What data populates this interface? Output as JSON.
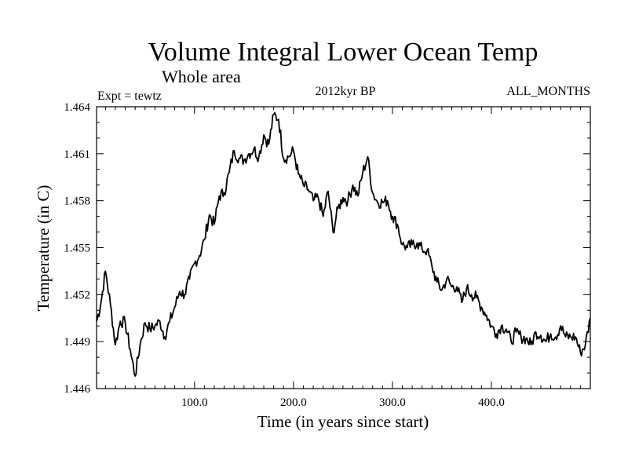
{
  "chart_data": {
    "type": "line",
    "title": "Volume Integral Lower Ocean Temp",
    "subtitle": "Whole area",
    "annotations": {
      "left": "Expt = tewtz",
      "center": "2012kyr BP",
      "right": "ALL_MONTHS"
    },
    "xlabel": "Time (in years since start)",
    "ylabel": "Temperature (in C)",
    "xlim": [
      1,
      500
    ],
    "ylim": [
      1.446,
      1.464
    ],
    "x_ticks": [
      100,
      200,
      300,
      400
    ],
    "x_tick_labels": [
      "100.0",
      "200.0",
      "300.0",
      "400.0"
    ],
    "y_ticks": [
      1.446,
      1.449,
      1.452,
      1.455,
      1.458,
      1.461,
      1.464
    ],
    "y_tick_labels": [
      "1.446",
      "1.449",
      "1.452",
      "1.455",
      "1.458",
      "1.461",
      "1.464"
    ],
    "series": [
      {
        "name": "Volume Integral Lower Ocean Temp",
        "x": [
          1,
          5,
          10,
          15,
          20,
          25,
          30,
          35,
          40,
          45,
          50,
          55,
          60,
          65,
          70,
          75,
          80,
          85,
          90,
          95,
          100,
          105,
          110,
          115,
          120,
          125,
          130,
          135,
          140,
          145,
          150,
          155,
          160,
          165,
          170,
          175,
          180,
          185,
          190,
          195,
          200,
          205,
          210,
          215,
          220,
          225,
          230,
          235,
          240,
          245,
          250,
          255,
          260,
          265,
          270,
          275,
          280,
          285,
          290,
          295,
          300,
          305,
          310,
          315,
          320,
          325,
          330,
          335,
          340,
          345,
          350,
          355,
          360,
          365,
          370,
          375,
          380,
          385,
          390,
          395,
          400,
          405,
          410,
          415,
          420,
          425,
          430,
          435,
          440,
          445,
          450,
          455,
          460,
          465,
          470,
          475,
          480,
          485,
          490,
          495,
          500
        ],
        "values": [
          1.4503,
          1.4513,
          1.4535,
          1.4514,
          1.4488,
          1.4503,
          1.4502,
          1.4485,
          1.4468,
          1.4488,
          1.4502,
          1.4498,
          1.45,
          1.4503,
          1.4493,
          1.4503,
          1.4512,
          1.4522,
          1.452,
          1.453,
          1.454,
          1.4545,
          1.4555,
          1.4571,
          1.4565,
          1.4583,
          1.4585,
          1.4598,
          1.4612,
          1.4607,
          1.4606,
          1.461,
          1.4613,
          1.4608,
          1.4622,
          1.4616,
          1.4635,
          1.4632,
          1.4607,
          1.4608,
          1.4612,
          1.4597,
          1.459,
          1.4587,
          1.458,
          1.4582,
          1.457,
          1.4586,
          1.456,
          1.4575,
          1.4582,
          1.458,
          1.459,
          1.4583,
          1.4598,
          1.4608,
          1.4585,
          1.4579,
          1.4579,
          1.458,
          1.457,
          1.4565,
          1.4552,
          1.455,
          1.4552,
          1.4553,
          1.4549,
          1.4548,
          1.4538,
          1.4528,
          1.4523,
          1.453,
          1.4525,
          1.4525,
          1.4515,
          1.4524,
          1.452,
          1.4518,
          1.4512,
          1.4507,
          1.45,
          1.4495,
          1.45,
          1.4498,
          1.449,
          1.4496,
          1.4493,
          1.4492,
          1.4488,
          1.4496,
          1.4494,
          1.449,
          1.4495,
          1.4493,
          1.45,
          1.4493,
          1.4493,
          1.4493,
          1.4483,
          1.4488,
          1.4505
        ]
      }
    ]
  }
}
